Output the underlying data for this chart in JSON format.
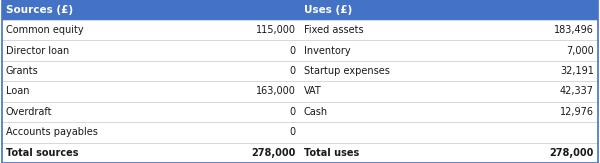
{
  "header_bg": "#4472c4",
  "header_text_color": "#ffffff",
  "text_color": "#1a1a1a",
  "border_color": "#4472c4",
  "header": [
    "Sources (£)",
    "Uses (£)"
  ],
  "sources": [
    [
      "Common equity",
      "115,000"
    ],
    [
      "Director loan",
      "0"
    ],
    [
      "Grants",
      "0"
    ],
    [
      "Loan",
      "163,000"
    ],
    [
      "Overdraft",
      "0"
    ],
    [
      "Accounts payables",
      "0"
    ]
  ],
  "uses": [
    [
      "Fixed assets",
      "183,496"
    ],
    [
      "Inventory",
      "7,000"
    ],
    [
      "Startup expenses",
      "32,191"
    ],
    [
      "VAT",
      "42,337"
    ],
    [
      "Cash",
      "12,976"
    ],
    [
      "",
      ""
    ]
  ],
  "total_sources_label": "Total sources",
  "total_sources_value": "278,000",
  "total_uses_label": "Total uses",
  "total_uses_value": "278,000",
  "figsize": [
    6.0,
    1.63
  ],
  "dpi": 100
}
